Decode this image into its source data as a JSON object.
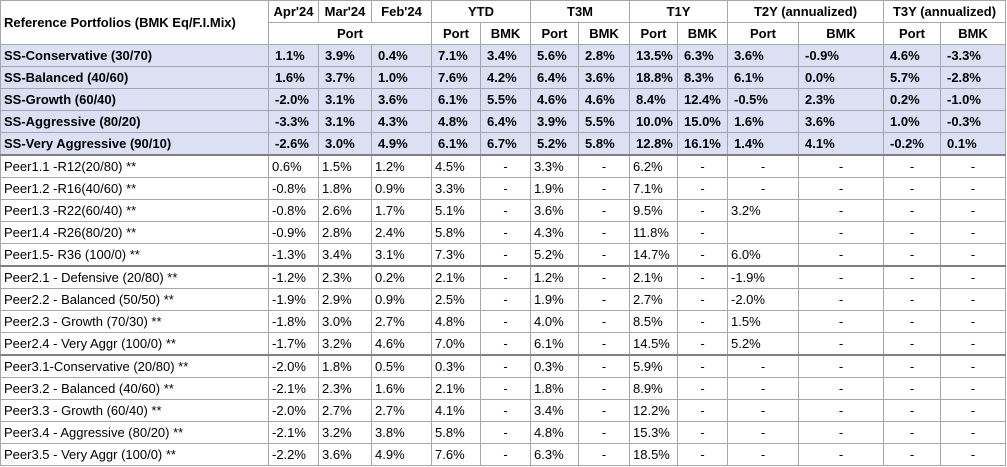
{
  "table": {
    "corner_label": "Reference Portfolios (BMK Eq/F.I.Mix)",
    "header_row1": [
      {
        "label": "Apr'24",
        "span": 1
      },
      {
        "label": "Mar'24",
        "span": 1
      },
      {
        "label": "Feb'24",
        "span": 1
      },
      {
        "label": "YTD",
        "span": 2
      },
      {
        "label": "T3M",
        "span": 2
      },
      {
        "label": "T1Y",
        "span": 2
      },
      {
        "label": "T2Y (annualized)",
        "span": 2
      },
      {
        "label": "T3Y (annualized)",
        "span": 2
      }
    ],
    "header_row2": [
      {
        "label": "Port",
        "span": 3
      },
      {
        "label": "Port",
        "span": 1
      },
      {
        "label": "BMK",
        "span": 1
      },
      {
        "label": "Port",
        "span": 1
      },
      {
        "label": "BMK",
        "span": 1
      },
      {
        "label": "Port",
        "span": 1
      },
      {
        "label": "BMK",
        "span": 1
      },
      {
        "label": "Port",
        "span": 1
      },
      {
        "label": "BMK",
        "span": 1
      },
      {
        "label": "Port",
        "span": 1
      },
      {
        "label": "BMK",
        "span": 1
      }
    ],
    "ss_rows": [
      {
        "name": "SS-Conservative (30/70)",
        "values": [
          "1.1%",
          "3.9%",
          "0.4%",
          "7.1%",
          "3.4%",
          "5.6%",
          "2.8%",
          "13.5%",
          "6.3%",
          "3.6%",
          "-0.9%",
          "4.6%",
          "-3.3%"
        ]
      },
      {
        "name": "SS-Balanced (40/60)",
        "values": [
          "1.6%",
          "3.7%",
          "1.0%",
          "7.6%",
          "4.2%",
          "6.4%",
          "3.6%",
          "18.8%",
          "8.3%",
          "6.1%",
          "0.0%",
          "5.7%",
          "-2.8%"
        ]
      },
      {
        "name": "SS-Growth (60/40)",
        "values": [
          "-2.0%",
          "3.1%",
          "3.6%",
          "6.1%",
          "5.5%",
          "4.6%",
          "4.6%",
          "8.4%",
          "12.4%",
          "-0.5%",
          "2.3%",
          "0.2%",
          "-1.0%"
        ]
      },
      {
        "name": "SS-Aggressive (80/20)",
        "values": [
          "-3.3%",
          "3.1%",
          "4.3%",
          "4.8%",
          "6.4%",
          "3.9%",
          "5.5%",
          "10.0%",
          "15.0%",
          "1.6%",
          "3.6%",
          "1.0%",
          "-0.3%"
        ]
      },
      {
        "name": "SS-Very Aggressive (90/10)",
        "values": [
          "-2.6%",
          "3.0%",
          "4.9%",
          "6.1%",
          "6.7%",
          "5.2%",
          "5.8%",
          "12.8%",
          "16.1%",
          "1.4%",
          "4.1%",
          "-0.2%",
          "0.1%"
        ]
      }
    ],
    "peer_groups": [
      {
        "rows": [
          {
            "name": "Peer1.1 -R12(20/80) **",
            "values": [
              "0.6%",
              "1.5%",
              "1.2%",
              "4.5%",
              "-",
              "3.3%",
              "-",
              "6.2%",
              "-",
              "-",
              "-",
              "-",
              "-"
            ]
          },
          {
            "name": "Peer1.2 -R16(40/60) **",
            "values": [
              "-0.8%",
              "1.8%",
              "0.9%",
              "3.3%",
              "-",
              "1.9%",
              "-",
              "7.1%",
              "-",
              "-",
              "-",
              "-",
              "-"
            ]
          },
          {
            "name": "Peer1.3 -R22(60/40) **",
            "values": [
              "-0.8%",
              "2.6%",
              "1.7%",
              "5.1%",
              "-",
              "3.6%",
              "-",
              "9.5%",
              "-",
              "3.2%",
              "-",
              "-",
              "-"
            ]
          },
          {
            "name": "Peer1.4 -R26(80/20) **",
            "values": [
              "-0.9%",
              "2.8%",
              "2.4%",
              "5.8%",
              "-",
              "4.3%",
              "-",
              "11.8%",
              "-",
              "",
              "-",
              "-",
              "-"
            ]
          },
          {
            "name": "Peer1.5- R36 (100/0) **",
            "values": [
              "-1.3%",
              "3.4%",
              "3.1%",
              "7.3%",
              "-",
              "5.2%",
              "-",
              "14.7%",
              "-",
              "6.0%",
              "-",
              "-",
              "-"
            ]
          }
        ]
      },
      {
        "rows": [
          {
            "name": "Peer2.1  - Defensive  (20/80) **",
            "values": [
              "-1.2%",
              "2.3%",
              "0.2%",
              "2.1%",
              "-",
              "1.2%",
              "-",
              "2.1%",
              "-",
              "-1.9%",
              "-",
              "-",
              "-"
            ]
          },
          {
            "name": "Peer2.2  - Balanced (50/50) **",
            "values": [
              "-1.9%",
              "2.9%",
              "0.9%",
              "2.5%",
              "-",
              "1.9%",
              "-",
              "2.7%",
              "-",
              "-2.0%",
              "-",
              "-",
              "-"
            ]
          },
          {
            "name": "Peer2.3  - Growth  (70/30) **",
            "values": [
              "-1.8%",
              "3.0%",
              "2.7%",
              "4.8%",
              "-",
              "4.0%",
              "-",
              "8.5%",
              "-",
              "1.5%",
              "-",
              "-",
              "-"
            ]
          },
          {
            "name": "Peer2.4  - Very Aggr  (100/0) **",
            "values": [
              "-1.7%",
              "3.2%",
              "4.6%",
              "7.0%",
              "-",
              "6.1%",
              "-",
              "14.5%",
              "-",
              "5.2%",
              "-",
              "-",
              "-"
            ]
          }
        ]
      },
      {
        "rows": [
          {
            "name": "Peer3.1-Conservative (20/80) **",
            "values": [
              "-2.0%",
              "1.8%",
              "0.5%",
              "0.3%",
              "-",
              "0.3%",
              "-",
              "5.9%",
              "-",
              "-",
              "-",
              "-",
              "-"
            ]
          },
          {
            "name": "Peer3.2 - Balanced  (40/60) **",
            "values": [
              "-2.1%",
              "2.3%",
              "1.6%",
              "2.1%",
              "-",
              "1.8%",
              "-",
              "8.9%",
              "-",
              "-",
              "-",
              "-",
              "-"
            ]
          },
          {
            "name": "Peer3.3 - Growth  (60/40) **",
            "values": [
              "-2.0%",
              "2.7%",
              "2.7%",
              "4.1%",
              "-",
              "3.4%",
              "-",
              "12.2%",
              "-",
              "-",
              "-",
              "-",
              "-"
            ]
          },
          {
            "name": "Peer3.4 - Aggressive  (80/20) **",
            "values": [
              "-2.1%",
              "3.2%",
              "3.8%",
              "5.8%",
              "-",
              "4.8%",
              "-",
              "15.3%",
              "-",
              "-",
              "-",
              "-",
              "-"
            ]
          },
          {
            "name": "Peer3.5  - Very Aggr (100/0) **",
            "values": [
              "-2.2%",
              "3.6%",
              "4.9%",
              "7.6%",
              "-",
              "6.3%",
              "-",
              "18.5%",
              "-",
              "-",
              "-",
              "-",
              "-"
            ]
          }
        ]
      }
    ],
    "colors": {
      "ss_row_background": "#dce0f4",
      "grid_line": "#a6a6a6",
      "group_separator": "#7f7f7f"
    }
  }
}
